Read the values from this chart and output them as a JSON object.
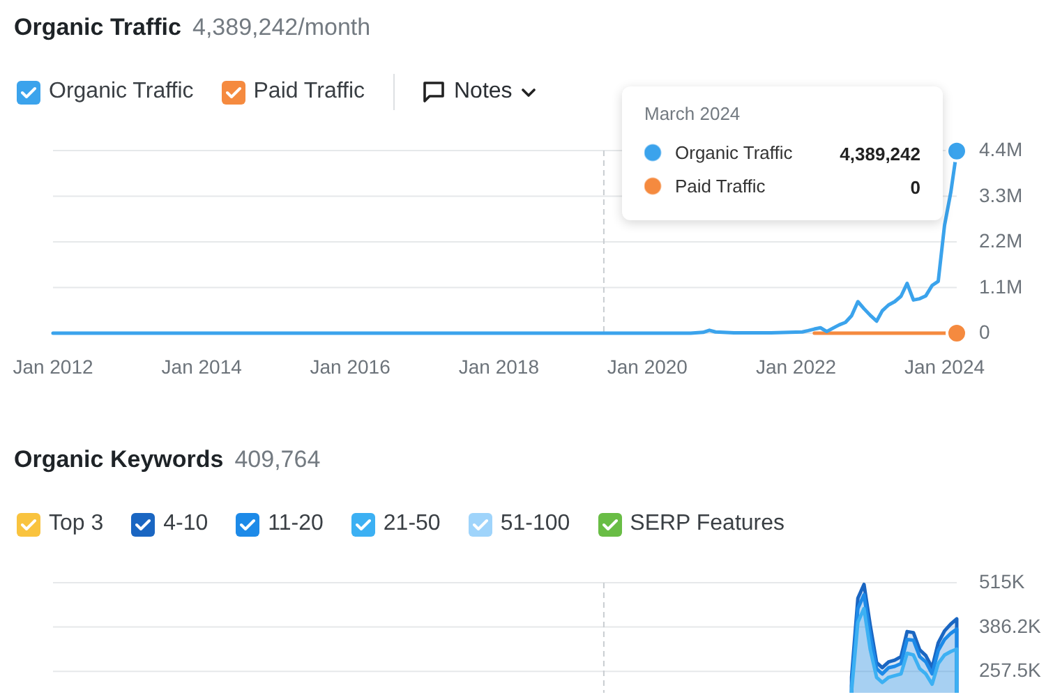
{
  "chart_data": [
    {
      "type": "line",
      "title": "Organic Traffic",
      "subtitle": "4,389,242/month",
      "legend": "top left",
      "grid": "y",
      "x": [
        "2012-01",
        "2013-01",
        "2014-01",
        "2015-01",
        "2016-01",
        "2017-01",
        "2018-01",
        "2019-01",
        "2020-01",
        "2020-08",
        "2020-10",
        "2020-11",
        "2020-12",
        "2021-03",
        "2021-06",
        "2021-09",
        "2021-12",
        "2022-02",
        "2022-03",
        "2022-04",
        "2022-05",
        "2022-06",
        "2022-07",
        "2022-08",
        "2022-09",
        "2022-10",
        "2022-11",
        "2022-12",
        "2023-01",
        "2023-02",
        "2023-03",
        "2023-04",
        "2023-05",
        "2023-06",
        "2023-07",
        "2023-08",
        "2023-09",
        "2023-10",
        "2023-11",
        "2023-12",
        "2024-01",
        "2024-02",
        "2024-03"
      ],
      "xlim": [
        "2012-01",
        "2024-03"
      ],
      "xticks": [
        {
          "value": "2012-01",
          "label": "Jan 2012"
        },
        {
          "value": "2014-01",
          "label": "Jan 2014"
        },
        {
          "value": "2016-01",
          "label": "Jan 2016"
        },
        {
          "value": "2018-01",
          "label": "Jan 2018"
        },
        {
          "value": "2020-01",
          "label": "Jan 2020"
        },
        {
          "value": "2022-01",
          "label": "Jan 2022"
        },
        {
          "value": "2024-01",
          "label": "Jan 2024"
        }
      ],
      "ylim": [
        0,
        4400000
      ],
      "yticks": [
        0,
        {
          "value": 1100000,
          "label": "1.1M"
        },
        {
          "value": 2200000,
          "label": "2.2M"
        },
        {
          "value": 3300000,
          "label": "3.3M"
        },
        {
          "value": 4400000,
          "label": "4.4M"
        }
      ],
      "ref_lines": [
        {
          "axis": "x",
          "value": "2019-06",
          "line_style": "dashed",
          "color": "#c9cdd1"
        }
      ],
      "annotations": [
        "Notes",
        "March 2024",
        "4,389,242",
        "0"
      ],
      "series": [
        {
          "name": "Organic Traffic",
          "color": "#3ba3ec",
          "values": [
            0,
            0,
            0,
            0,
            0,
            0,
            0,
            0,
            0,
            0,
            20000,
            70000,
            30000,
            10000,
            10000,
            10000,
            20000,
            30000,
            60000,
            100000,
            130000,
            40000,
            120000,
            200000,
            260000,
            420000,
            760000,
            590000,
            430000,
            290000,
            540000,
            680000,
            760000,
            890000,
            1200000,
            800000,
            830000,
            900000,
            1150000,
            1250000,
            2600000,
            3400000,
            4389242
          ]
        },
        {
          "name": "Paid Traffic",
          "color": "#f58a3f",
          "values": [
            null,
            null,
            null,
            null,
            null,
            null,
            null,
            null,
            null,
            null,
            null,
            null,
            null,
            null,
            null,
            null,
            null,
            null,
            null,
            0,
            0,
            0,
            0,
            0,
            0,
            0,
            0,
            0,
            0,
            0,
            0,
            0,
            0,
            0,
            0,
            0,
            0,
            0,
            0,
            0,
            0,
            0,
            0
          ]
        },
        {
          "type": "scatter",
          "color": "#3ba3ec",
          "x": [
            "2024-03"
          ],
          "values": [
            4389242
          ]
        },
        {
          "type": "scatter",
          "color": "#f58a3f",
          "x": [
            "2024-03"
          ],
          "values": [
            0
          ]
        }
      ]
    },
    {
      "type": "area",
      "title": "Organic Keywords",
      "subtitle": "409,764",
      "legend": "top left",
      "grid": "y",
      "tick_labels": "y",
      "x": [
        "2022-10",
        "2022-11",
        "2022-12",
        "2023-01",
        "2023-02",
        "2023-03",
        "2023-04",
        "2023-05",
        "2023-06",
        "2023-07",
        "2023-08",
        "2023-09",
        "2023-10",
        "2023-11",
        "2023-12",
        "2024-01",
        "2024-02",
        "2024-03"
      ],
      "xlim": [
        "2012-01",
        "2024-03"
      ],
      "ylim": [
        195000,
        515000
      ],
      "yticks": [
        {
          "value": 257500,
          "label": "257.5K"
        },
        {
          "value": 386250,
          "label": "386.2K"
        },
        {
          "value": 515000,
          "label": "515K"
        }
      ],
      "ref_lines": [
        {
          "axis": "x",
          "value": "2019-06",
          "line_style": "dashed",
          "color": "#c9cdd1"
        }
      ],
      "series": [
        {
          "name": "Top 3",
          "color": "#f9c33e",
          "values": [
            null,
            null,
            null,
            null,
            null,
            null,
            null,
            null,
            null,
            null,
            null,
            null,
            null,
            null,
            null,
            null,
            null,
            null
          ]
        },
        {
          "name": "4-10",
          "color": "#1a66c2",
          "values": [
            240000,
            470000,
            510000,
            390000,
            283000,
            268000,
            285000,
            290000,
            300000,
            373000,
            370000,
            320000,
            303000,
            268000,
            340000,
            375000,
            395000,
            409764
          ]
        },
        {
          "name": "11-20",
          "color": "#1d8ae8",
          "values": [
            215000,
            440000,
            480000,
            360000,
            265000,
            250000,
            268000,
            272000,
            280000,
            350000,
            348000,
            300000,
            285000,
            250000,
            318000,
            350000,
            368000,
            380000
          ]
        },
        {
          "name": "21-50",
          "color": "#3cb0f3",
          "values": [
            200000,
            400000,
            440000,
            320000,
            240000,
            225000,
            240000,
            245000,
            250000,
            310000,
            305000,
            265000,
            250000,
            220000,
            280000,
            305000,
            315000,
            322000
          ]
        },
        {
          "name": "51-100",
          "color": "#9fd4fb",
          "values": [
            null,
            null,
            null,
            null,
            null,
            null,
            null,
            null,
            null,
            null,
            null,
            null,
            null,
            null,
            null,
            null,
            null,
            null
          ]
        },
        {
          "name": "SERP Features",
          "color": "#69bd45",
          "values": [
            null,
            null,
            null,
            null,
            null,
            null,
            null,
            null,
            null,
            null,
            null,
            null,
            null,
            null,
            null,
            null,
            null,
            null
          ]
        }
      ]
    }
  ]
}
